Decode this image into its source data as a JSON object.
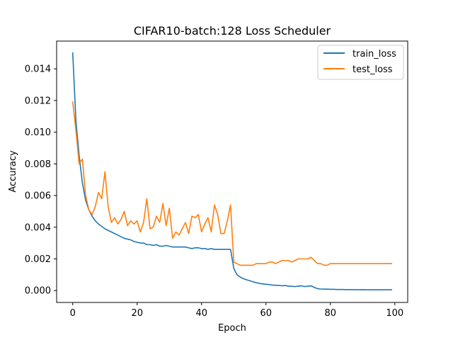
{
  "chart_data": {
    "type": "line",
    "title": "CIFAR10-batch:128 Loss Scheduler",
    "xlabel": "Epoch",
    "ylabel": "Accuracy",
    "xlim": [
      -5,
      104
    ],
    "ylim": [
      -0.00075,
      0.01575
    ],
    "xticks": [
      0,
      20,
      40,
      60,
      80,
      100
    ],
    "xtick_labels": [
      "0",
      "20",
      "40",
      "60",
      "80",
      "100"
    ],
    "yticks": [
      0.0,
      0.002,
      0.004,
      0.006,
      0.008,
      0.01,
      0.012,
      0.014
    ],
    "ytick_labels": [
      "0.000",
      "0.002",
      "0.004",
      "0.006",
      "0.008",
      "0.010",
      "0.012",
      "0.014"
    ],
    "grid": false,
    "legend_position": "top-right",
    "x": [
      0,
      1,
      2,
      3,
      4,
      5,
      6,
      7,
      8,
      9,
      10,
      11,
      12,
      13,
      14,
      15,
      16,
      17,
      18,
      19,
      20,
      21,
      22,
      23,
      24,
      25,
      26,
      27,
      28,
      29,
      30,
      31,
      32,
      33,
      34,
      35,
      36,
      37,
      38,
      39,
      40,
      41,
      42,
      43,
      44,
      45,
      46,
      47,
      48,
      49,
      50,
      51,
      52,
      53,
      54,
      55,
      56,
      57,
      58,
      59,
      60,
      61,
      62,
      63,
      64,
      65,
      66,
      67,
      68,
      69,
      70,
      71,
      72,
      73,
      74,
      75,
      76,
      77,
      78,
      79,
      80,
      81,
      82,
      83,
      84,
      85,
      86,
      87,
      88,
      89,
      90,
      91,
      92,
      93,
      94,
      95,
      96,
      97,
      98,
      99
    ],
    "series": [
      {
        "name": "train_loss",
        "color": "#1f77b4",
        "values": [
          0.015,
          0.0107,
          0.0085,
          0.0068,
          0.0057,
          0.0051,
          0.0047,
          0.0044,
          0.0042,
          0.00405,
          0.0039,
          0.0038,
          0.0037,
          0.0036,
          0.0035,
          0.0034,
          0.0033,
          0.00325,
          0.0032,
          0.0031,
          0.00305,
          0.003,
          0.003,
          0.0029,
          0.0029,
          0.00285,
          0.0029,
          0.0028,
          0.0028,
          0.00285,
          0.0028,
          0.00275,
          0.00275,
          0.00275,
          0.00275,
          0.00275,
          0.0027,
          0.00265,
          0.0027,
          0.0027,
          0.00265,
          0.00265,
          0.0026,
          0.00265,
          0.0026,
          0.0026,
          0.0026,
          0.0026,
          0.0026,
          0.0026,
          0.0014,
          0.001,
          0.00085,
          0.00075,
          0.00068,
          0.00062,
          0.00055,
          0.0005,
          0.00045,
          0.00042,
          0.0004,
          0.00038,
          0.00035,
          0.00033,
          0.00033,
          0.0003,
          0.00032,
          0.00028,
          0.00027,
          0.00025,
          0.00028,
          0.0003,
          0.00025,
          0.00028,
          0.0003,
          0.0002,
          0.00012,
          0.0001,
          9e-05,
          9e-05,
          8e-05,
          8e-05,
          7e-05,
          7e-05,
          7e-05,
          6e-05,
          6e-05,
          6e-05,
          6e-05,
          5e-05,
          6e-05,
          5e-05,
          5e-05,
          5e-05,
          5e-05,
          5e-05,
          5e-05,
          5e-05,
          5e-05,
          5e-05
        ]
      },
      {
        "name": "test_loss",
        "color": "#ff7f0e",
        "values": [
          0.0119,
          0.0101,
          0.008,
          0.0083,
          0.006,
          0.0051,
          0.0048,
          0.0053,
          0.0062,
          0.0058,
          0.0075,
          0.0053,
          0.0043,
          0.0046,
          0.0042,
          0.0045,
          0.005,
          0.0041,
          0.0044,
          0.0042,
          0.0044,
          0.0037,
          0.0043,
          0.0058,
          0.0039,
          0.004,
          0.0047,
          0.0043,
          0.0055,
          0.0041,
          0.0052,
          0.0033,
          0.0037,
          0.0035,
          0.0039,
          0.0043,
          0.0036,
          0.0047,
          0.0046,
          0.0048,
          0.0037,
          0.0042,
          0.0046,
          0.0037,
          0.0054,
          0.0048,
          0.0036,
          0.0036,
          0.0044,
          0.0054,
          0.0018,
          0.0017,
          0.0016,
          0.0016,
          0.0016,
          0.0016,
          0.0016,
          0.0017,
          0.0017,
          0.0017,
          0.0017,
          0.0018,
          0.0018,
          0.0017,
          0.0018,
          0.0019,
          0.0019,
          0.0019,
          0.0018,
          0.0019,
          0.002,
          0.002,
          0.002,
          0.002,
          0.0021,
          0.0019,
          0.0017,
          0.0017,
          0.0016,
          0.0016,
          0.0017,
          0.0017,
          0.0017,
          0.0017,
          0.0017,
          0.0017,
          0.0017,
          0.0017,
          0.0017,
          0.0017,
          0.0017,
          0.0017,
          0.0017,
          0.0017,
          0.0017,
          0.0017,
          0.0017,
          0.0017,
          0.0017,
          0.0017
        ]
      }
    ]
  }
}
